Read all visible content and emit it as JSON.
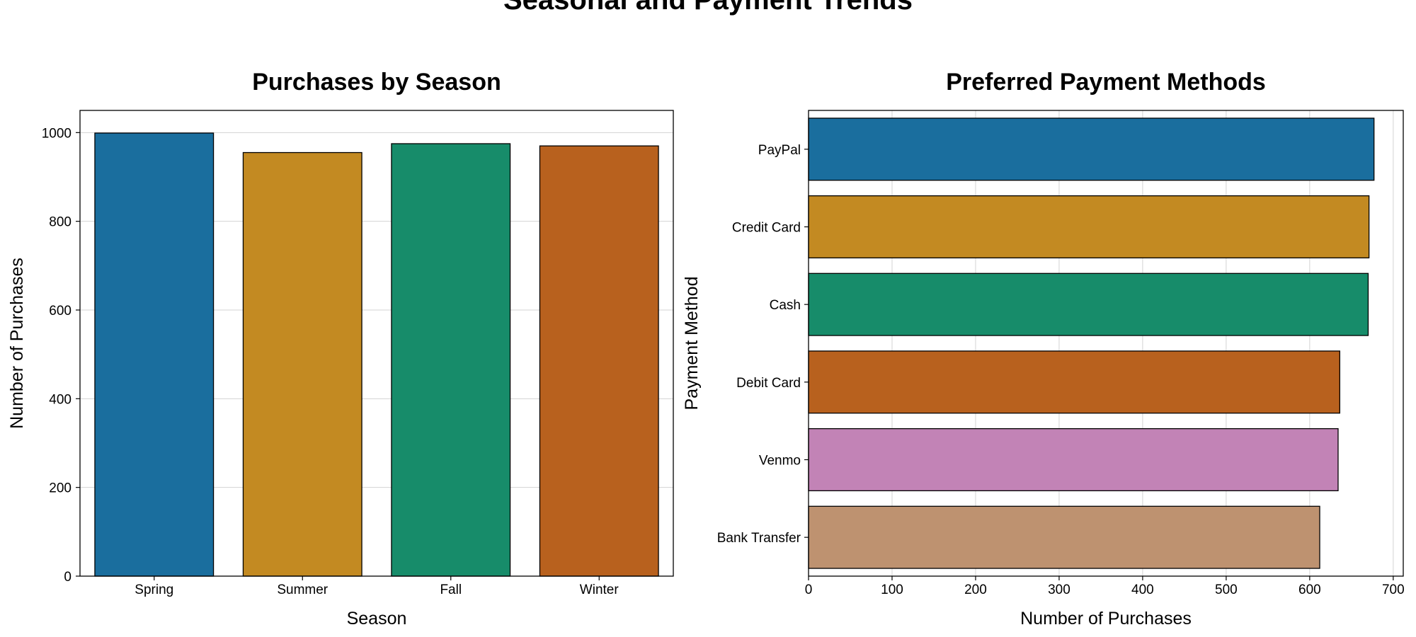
{
  "suptitle": "Seasonal and Payment Trends",
  "chart_data": [
    {
      "type": "bar",
      "orientation": "vertical",
      "title": "Purchases by Season",
      "xlabel": "Season",
      "ylabel": "Number of Purchases",
      "categories": [
        "Spring",
        "Summer",
        "Fall",
        "Winter"
      ],
      "values": [
        999,
        955,
        975,
        970
      ],
      "ylim": [
        0,
        1050
      ],
      "yticks": [
        0,
        200,
        400,
        600,
        800,
        1000
      ],
      "grid": "horizontal",
      "colors": [
        "#1a6e9e",
        "#c38a22",
        "#178c6a",
        "#b8611e"
      ]
    },
    {
      "type": "bar",
      "orientation": "horizontal",
      "title": "Preferred Payment Methods",
      "xlabel": "Number of Purchases",
      "ylabel": "Payment Method",
      "categories": [
        "PayPal",
        "Credit Card",
        "Cash",
        "Debit Card",
        "Venmo",
        "Bank Transfer"
      ],
      "values": [
        677,
        671,
        670,
        636,
        634,
        612
      ],
      "xlim": [
        0,
        712
      ],
      "xticks": [
        0,
        100,
        200,
        300,
        400,
        500,
        600,
        700
      ],
      "grid": "vertical",
      "colors": [
        "#1a6e9e",
        "#c38a22",
        "#178c6a",
        "#b8611e",
        "#c283b6",
        "#be9270"
      ]
    }
  ]
}
